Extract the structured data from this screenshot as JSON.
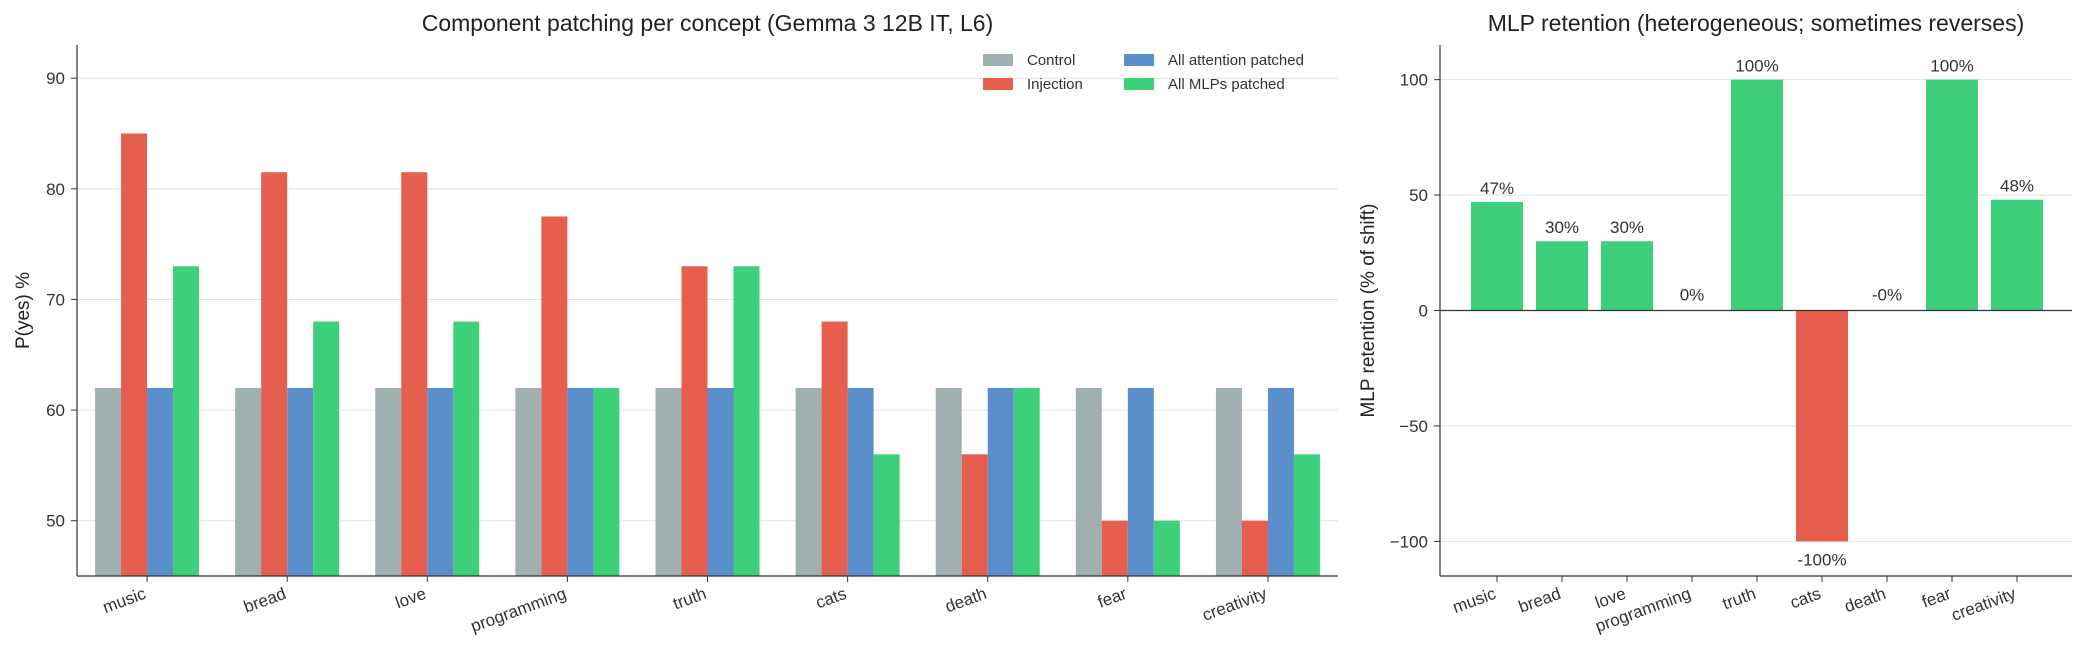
{
  "colors": {
    "control": "#a0b0b0",
    "injection": "#e65f4e",
    "attention": "#5b8fcb",
    "mlp": "#3ecf7a",
    "negative": "#e65f4e"
  },
  "chart_data": [
    {
      "type": "bar",
      "title": "Component patching per concept (Gemma 3 12B IT, L6)",
      "xlabel": "",
      "ylabel": "P(yes) %",
      "ylim": [
        45,
        93
      ],
      "yticks": [
        50,
        60,
        70,
        80,
        90
      ],
      "grid": true,
      "legend_position": "top-right",
      "categories": [
        "music",
        "bread",
        "love",
        "programming",
        "truth",
        "cats",
        "death",
        "fear",
        "creativity"
      ],
      "series": [
        {
          "name": "Control",
          "color_key": "control",
          "values": [
            62,
            62,
            62,
            62,
            62,
            62,
            62,
            62,
            62
          ]
        },
        {
          "name": "Injection",
          "color_key": "injection",
          "values": [
            85,
            81.5,
            81.5,
            77.5,
            73,
            68,
            56,
            50,
            50
          ]
        },
        {
          "name": "All attention patched",
          "color_key": "attention",
          "values": [
            62,
            62,
            62,
            62,
            62,
            62,
            62,
            62,
            62
          ]
        },
        {
          "name": "All MLPs patched",
          "color_key": "mlp",
          "values": [
            73,
            68,
            68,
            62,
            73,
            56,
            62,
            50,
            56
          ]
        }
      ]
    },
    {
      "type": "bar",
      "title": "MLP retention (heterogeneous; sometimes reverses)",
      "xlabel": "",
      "ylabel": "MLP retention (% of shift)",
      "ylim": [
        -115,
        115
      ],
      "yticks": [
        -100,
        -50,
        0,
        50,
        100
      ],
      "ytick_labels": [
        "−100",
        "−50",
        "0",
        "50",
        "100"
      ],
      "grid": true,
      "categories": [
        "music",
        "bread",
        "love",
        "programming",
        "truth",
        "cats",
        "death",
        "fear",
        "creativity"
      ],
      "values": [
        47,
        30,
        30,
        0,
        100,
        -100,
        0,
        100,
        48
      ],
      "data_labels": [
        "47%",
        "30%",
        "30%",
        "0%",
        "100%",
        "-100%",
        "-0%",
        "100%",
        "48%"
      ]
    }
  ]
}
